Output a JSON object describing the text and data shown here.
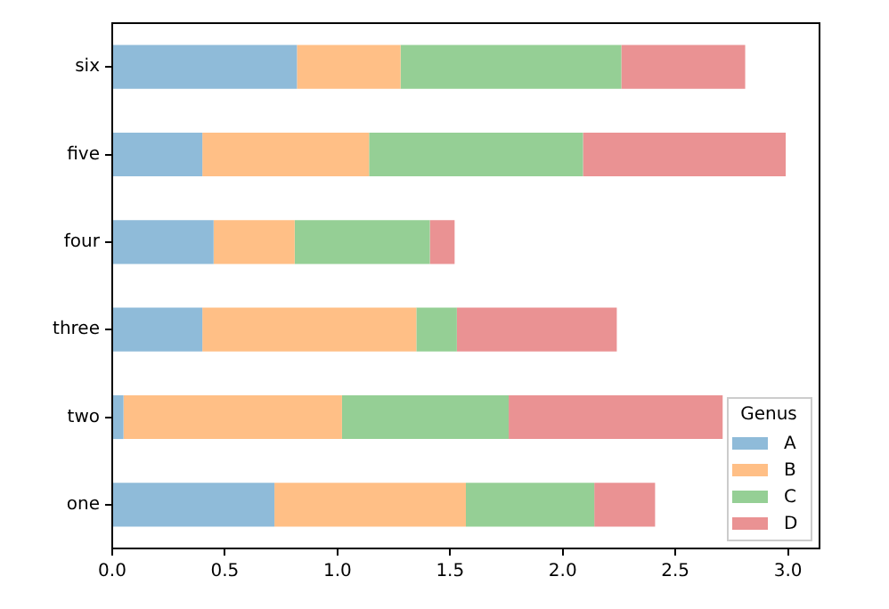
{
  "chart_data": {
    "type": "bar",
    "orientation": "horizontal",
    "stacked": true,
    "categories": [
      "six",
      "five",
      "four",
      "three",
      "two",
      "one"
    ],
    "series": [
      {
        "name": "A",
        "color": "#8fbbd9",
        "values": [
          0.82,
          0.4,
          0.45,
          0.4,
          0.05,
          0.72
        ]
      },
      {
        "name": "B",
        "color": "#ffbf86",
        "values": [
          0.46,
          0.74,
          0.36,
          0.95,
          0.97,
          0.85
        ]
      },
      {
        "name": "C",
        "color": "#95cf95",
        "values": [
          0.98,
          0.95,
          0.6,
          0.18,
          0.74,
          0.57
        ]
      },
      {
        "name": "D",
        "color": "#ea9293",
        "values": [
          0.55,
          0.9,
          0.11,
          0.71,
          0.95,
          0.27
        ]
      }
    ],
    "xlim": [
      0,
      3.14
    ],
    "xticks": [
      {
        "value": 0,
        "label": "0.0"
      },
      {
        "value": 0.5,
        "label": "0.5"
      },
      {
        "value": 1,
        "label": "1.0"
      },
      {
        "value": 1.5,
        "label": "1.5"
      },
      {
        "value": 2,
        "label": "2.0"
      },
      {
        "value": 2.5,
        "label": "2.5"
      },
      {
        "value": 3,
        "label": "3.0"
      }
    ],
    "legend": "bottom right",
    "legend_title": "Genus",
    "grid": false
  }
}
